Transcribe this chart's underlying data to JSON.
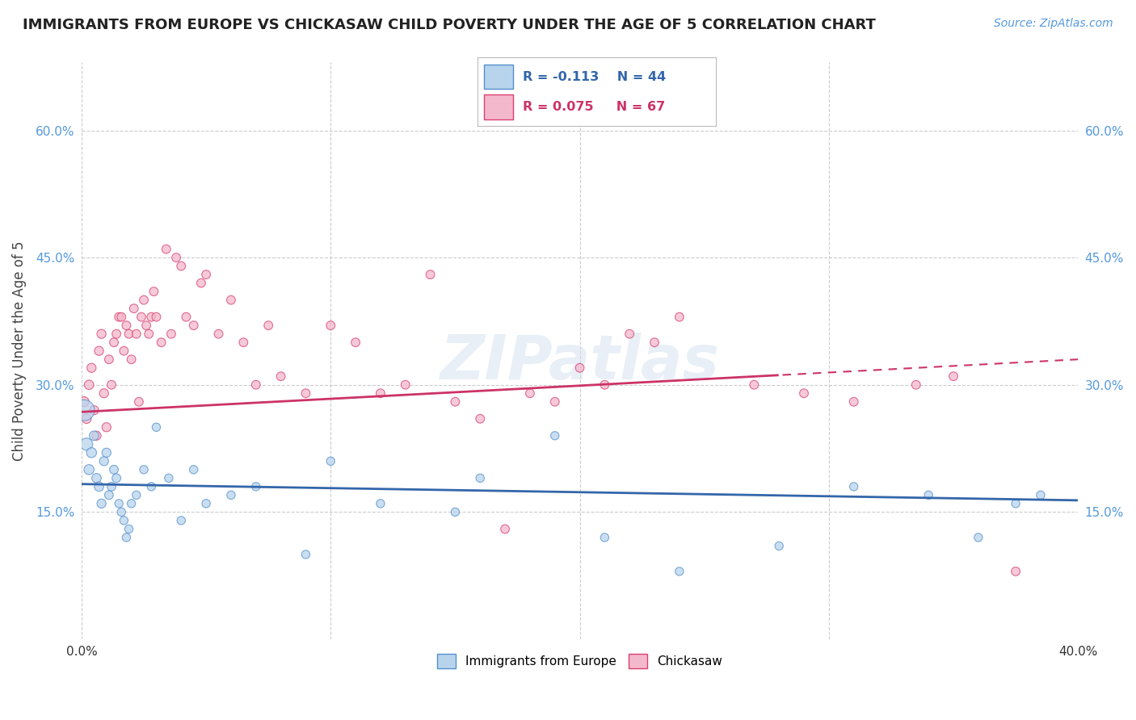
{
  "title": "IMMIGRANTS FROM EUROPE VS CHICKASAW CHILD POVERTY UNDER THE AGE OF 5 CORRELATION CHART",
  "source": "Source: ZipAtlas.com",
  "ylabel": "Child Poverty Under the Age of 5",
  "xlim": [
    0.0,
    0.4
  ],
  "ylim": [
    0.0,
    0.68
  ],
  "yticks": [
    0.15,
    0.3,
    0.45,
    0.6
  ],
  "ytick_labels": [
    "15.0%",
    "30.0%",
    "45.0%",
    "60.0%"
  ],
  "xticks": [
    0.0,
    0.1,
    0.2,
    0.3,
    0.4
  ],
  "grid_color": "#cccccc",
  "background_color": "#ffffff",
  "blue_fill": "#b8d4ed",
  "pink_fill": "#f4b8cc",
  "blue_edge": "#5590cc",
  "pink_edge": "#d94070",
  "blue_line_color": "#3366aa",
  "pink_line_color": "#cc3366",
  "legend_R1": "R = -0.113",
  "legend_N1": "N = 44",
  "legend_R2": "R = 0.075",
  "legend_N2": "N = 67",
  "blue_intercept": 0.183,
  "blue_slope": -0.048,
  "pink_intercept": 0.268,
  "pink_slope": 0.155,
  "blue_x": [
    0.001,
    0.002,
    0.003,
    0.004,
    0.005,
    0.006,
    0.007,
    0.008,
    0.009,
    0.01,
    0.011,
    0.012,
    0.013,
    0.014,
    0.015,
    0.016,
    0.017,
    0.018,
    0.019,
    0.02,
    0.022,
    0.025,
    0.028,
    0.03,
    0.035,
    0.04,
    0.045,
    0.05,
    0.06,
    0.07,
    0.09,
    0.1,
    0.12,
    0.15,
    0.16,
    0.19,
    0.21,
    0.24,
    0.28,
    0.31,
    0.34,
    0.36,
    0.375,
    0.385
  ],
  "blue_y": [
    0.27,
    0.23,
    0.2,
    0.22,
    0.24,
    0.19,
    0.18,
    0.16,
    0.21,
    0.22,
    0.17,
    0.18,
    0.2,
    0.19,
    0.16,
    0.15,
    0.14,
    0.12,
    0.13,
    0.16,
    0.17,
    0.2,
    0.18,
    0.25,
    0.19,
    0.14,
    0.2,
    0.16,
    0.17,
    0.18,
    0.1,
    0.21,
    0.16,
    0.15,
    0.19,
    0.24,
    0.12,
    0.08,
    0.11,
    0.18,
    0.17,
    0.12,
    0.16,
    0.17
  ],
  "blue_size": [
    350,
    120,
    80,
    80,
    70,
    70,
    70,
    65,
    65,
    65,
    60,
    60,
    60,
    60,
    55,
    55,
    55,
    55,
    55,
    55,
    55,
    55,
    55,
    55,
    55,
    55,
    55,
    55,
    55,
    55,
    55,
    55,
    55,
    55,
    55,
    55,
    55,
    55,
    55,
    55,
    55,
    55,
    55,
    55
  ],
  "pink_x": [
    0.001,
    0.002,
    0.003,
    0.004,
    0.005,
    0.006,
    0.007,
    0.008,
    0.009,
    0.01,
    0.011,
    0.012,
    0.013,
    0.014,
    0.015,
    0.016,
    0.017,
    0.018,
    0.019,
    0.02,
    0.021,
    0.022,
    0.023,
    0.024,
    0.025,
    0.026,
    0.027,
    0.028,
    0.029,
    0.03,
    0.032,
    0.034,
    0.036,
    0.038,
    0.04,
    0.042,
    0.045,
    0.048,
    0.05,
    0.055,
    0.06,
    0.065,
    0.07,
    0.075,
    0.08,
    0.09,
    0.1,
    0.11,
    0.12,
    0.13,
    0.14,
    0.15,
    0.16,
    0.17,
    0.18,
    0.19,
    0.2,
    0.21,
    0.22,
    0.23,
    0.24,
    0.27,
    0.29,
    0.31,
    0.335,
    0.35,
    0.375
  ],
  "pink_y": [
    0.28,
    0.26,
    0.3,
    0.32,
    0.27,
    0.24,
    0.34,
    0.36,
    0.29,
    0.25,
    0.33,
    0.3,
    0.35,
    0.36,
    0.38,
    0.38,
    0.34,
    0.37,
    0.36,
    0.33,
    0.39,
    0.36,
    0.28,
    0.38,
    0.4,
    0.37,
    0.36,
    0.38,
    0.41,
    0.38,
    0.35,
    0.46,
    0.36,
    0.45,
    0.44,
    0.38,
    0.37,
    0.42,
    0.43,
    0.36,
    0.4,
    0.35,
    0.3,
    0.37,
    0.31,
    0.29,
    0.37,
    0.35,
    0.29,
    0.3,
    0.43,
    0.28,
    0.26,
    0.13,
    0.29,
    0.28,
    0.32,
    0.3,
    0.36,
    0.35,
    0.38,
    0.3,
    0.29,
    0.28,
    0.3,
    0.31,
    0.08
  ],
  "pink_size": [
    80,
    70,
    70,
    65,
    65,
    65,
    65,
    65,
    65,
    65,
    60,
    60,
    60,
    60,
    60,
    60,
    60,
    60,
    60,
    60,
    60,
    60,
    60,
    60,
    60,
    60,
    60,
    60,
    60,
    60,
    60,
    60,
    60,
    60,
    60,
    60,
    60,
    60,
    60,
    60,
    60,
    60,
    60,
    60,
    60,
    60,
    60,
    60,
    60,
    60,
    60,
    60,
    60,
    60,
    60,
    60,
    60,
    60,
    60,
    60,
    60,
    60,
    60,
    60,
    60,
    60,
    60
  ]
}
